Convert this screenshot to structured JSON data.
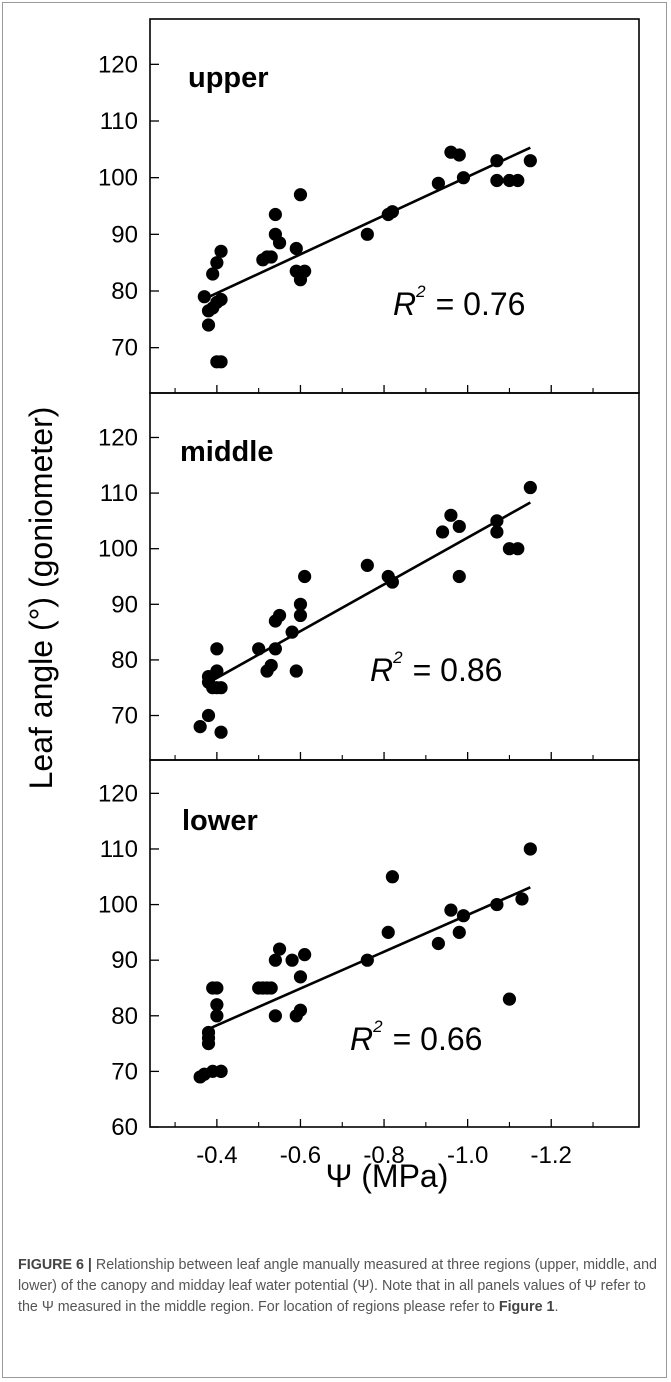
{
  "chart_data": [
    {
      "type": "scatter",
      "panel_label": "upper",
      "annotation": {
        "prefix": "R",
        "superscript": "2",
        "value": "= 0.76"
      },
      "ylim": [
        62,
        128
      ],
      "yticks": [
        70,
        80,
        90,
        100,
        110,
        120
      ],
      "xlim": [
        -0.24,
        -1.41
      ],
      "points": [
        [
          -0.37,
          79
        ],
        [
          -0.38,
          74
        ],
        [
          -0.38,
          76.5
        ],
        [
          -0.39,
          83
        ],
        [
          -0.39,
          77
        ],
        [
          -0.4,
          85
        ],
        [
          -0.4,
          78
        ],
        [
          -0.4,
          67.5
        ],
        [
          -0.41,
          87
        ],
        [
          -0.41,
          67.5
        ],
        [
          -0.41,
          78.5
        ],
        [
          -0.51,
          85.5
        ],
        [
          -0.52,
          86
        ],
        [
          -0.53,
          86
        ],
        [
          -0.54,
          90
        ],
        [
          -0.54,
          93.5
        ],
        [
          -0.55,
          88.5
        ],
        [
          -0.59,
          87.5
        ],
        [
          -0.59,
          83.5
        ],
        [
          -0.6,
          97
        ],
        [
          -0.6,
          82
        ],
        [
          -0.61,
          83.5
        ],
        [
          -0.76,
          90
        ],
        [
          -0.81,
          93.5
        ],
        [
          -0.82,
          94
        ],
        [
          -0.93,
          99
        ],
        [
          -0.96,
          104.5
        ],
        [
          -0.98,
          104
        ],
        [
          -0.99,
          100
        ],
        [
          -1.07,
          103
        ],
        [
          -1.07,
          99.5
        ],
        [
          -1.1,
          99.5
        ],
        [
          -1.12,
          99.5
        ],
        [
          -1.15,
          103
        ]
      ],
      "fit": {
        "x": [
          -0.37,
          -1.15
        ],
        "y": [
          78.6,
          105.3
        ]
      }
    },
    {
      "type": "scatter",
      "panel_label": "middle",
      "annotation": {
        "prefix": "R",
        "superscript": "2",
        "value": "= 0.86"
      },
      "ylim": [
        62,
        128
      ],
      "yticks": [
        70,
        80,
        90,
        100,
        110,
        120
      ],
      "xlim": [
        -0.24,
        -1.41
      ],
      "points": [
        [
          -0.36,
          68
        ],
        [
          -0.38,
          77
        ],
        [
          -0.38,
          70
        ],
        [
          -0.38,
          76
        ],
        [
          -0.39,
          75
        ],
        [
          -0.4,
          78
        ],
        [
          -0.4,
          82
        ],
        [
          -0.4,
          75
        ],
        [
          -0.41,
          67
        ],
        [
          -0.41,
          75
        ],
        [
          -0.5,
          82
        ],
        [
          -0.52,
          78
        ],
        [
          -0.53,
          79
        ],
        [
          -0.54,
          82
        ],
        [
          -0.54,
          87
        ],
        [
          -0.55,
          88
        ],
        [
          -0.58,
          85
        ],
        [
          -0.59,
          78
        ],
        [
          -0.6,
          88
        ],
        [
          -0.6,
          90
        ],
        [
          -0.61,
          95
        ],
        [
          -0.76,
          97
        ],
        [
          -0.81,
          95
        ],
        [
          -0.82,
          94
        ],
        [
          -0.94,
          103
        ],
        [
          -0.96,
          106
        ],
        [
          -0.98,
          104
        ],
        [
          -0.98,
          95
        ],
        [
          -1.07,
          103
        ],
        [
          -1.07,
          105
        ],
        [
          -1.1,
          100
        ],
        [
          -1.12,
          100
        ],
        [
          -1.15,
          111
        ]
      ],
      "fit": {
        "x": [
          -0.37,
          -1.15
        ],
        "y": [
          75.5,
          108.3
        ]
      }
    },
    {
      "type": "scatter",
      "panel_label": "lower",
      "annotation": {
        "prefix": "R",
        "superscript": "2",
        "value": "= 0.66"
      },
      "ylim": [
        60,
        126
      ],
      "yticks": [
        60,
        70,
        80,
        90,
        100,
        110,
        120
      ],
      "xlim": [
        -0.24,
        -1.41
      ],
      "xticks": [
        -0.4,
        -0.6,
        -0.8,
        -1.0,
        -1.2
      ],
      "xticklabels": [
        "-0.4",
        "-0.6",
        "-0.8",
        "-1.0",
        "-1.2"
      ],
      "xlabel": "Ψ (MPa)",
      "points": [
        [
          -0.36,
          69
        ],
        [
          -0.37,
          69.5
        ],
        [
          -0.38,
          75
        ],
        [
          -0.38,
          77
        ],
        [
          -0.38,
          76
        ],
        [
          -0.39,
          70
        ],
        [
          -0.39,
          85
        ],
        [
          -0.4,
          82
        ],
        [
          -0.4,
          85
        ],
        [
          -0.4,
          80
        ],
        [
          -0.41,
          70
        ],
        [
          -0.41,
          70
        ],
        [
          -0.5,
          85
        ],
        [
          -0.51,
          85
        ],
        [
          -0.52,
          85
        ],
        [
          -0.53,
          85
        ],
        [
          -0.54,
          80
        ],
        [
          -0.54,
          90
        ],
        [
          -0.55,
          92
        ],
        [
          -0.58,
          90
        ],
        [
          -0.59,
          80
        ],
        [
          -0.6,
          81
        ],
        [
          -0.6,
          87
        ],
        [
          -0.61,
          91
        ],
        [
          -0.76,
          90
        ],
        [
          -0.81,
          95
        ],
        [
          -0.82,
          105
        ],
        [
          -0.93,
          93
        ],
        [
          -0.96,
          99
        ],
        [
          -0.98,
          95
        ],
        [
          -0.99,
          98
        ],
        [
          -1.07,
          100
        ],
        [
          -1.1,
          83
        ],
        [
          -1.13,
          101
        ],
        [
          -1.15,
          110
        ]
      ],
      "fit": {
        "x": [
          -0.37,
          -1.15
        ],
        "y": [
          77.3,
          103.1
        ]
      }
    }
  ],
  "ylabel": "Leaf angle (°) (goniometer)",
  "caption": {
    "label": "FIGURE 6 |",
    "text_part1": "Relationship between leaf angle manually measured at three regions (upper, middle, and lower) of the canopy and midday leaf water potential (Ψ). Note that in all panels values of Ψ refer to the Ψ measured in the middle region. For location of regions please refer to",
    "figure_ref": "Figure 1",
    "text_part2": "."
  },
  "colors": {
    "marker": "#000000",
    "fit_line": "#000000",
    "frame": "#000000"
  }
}
